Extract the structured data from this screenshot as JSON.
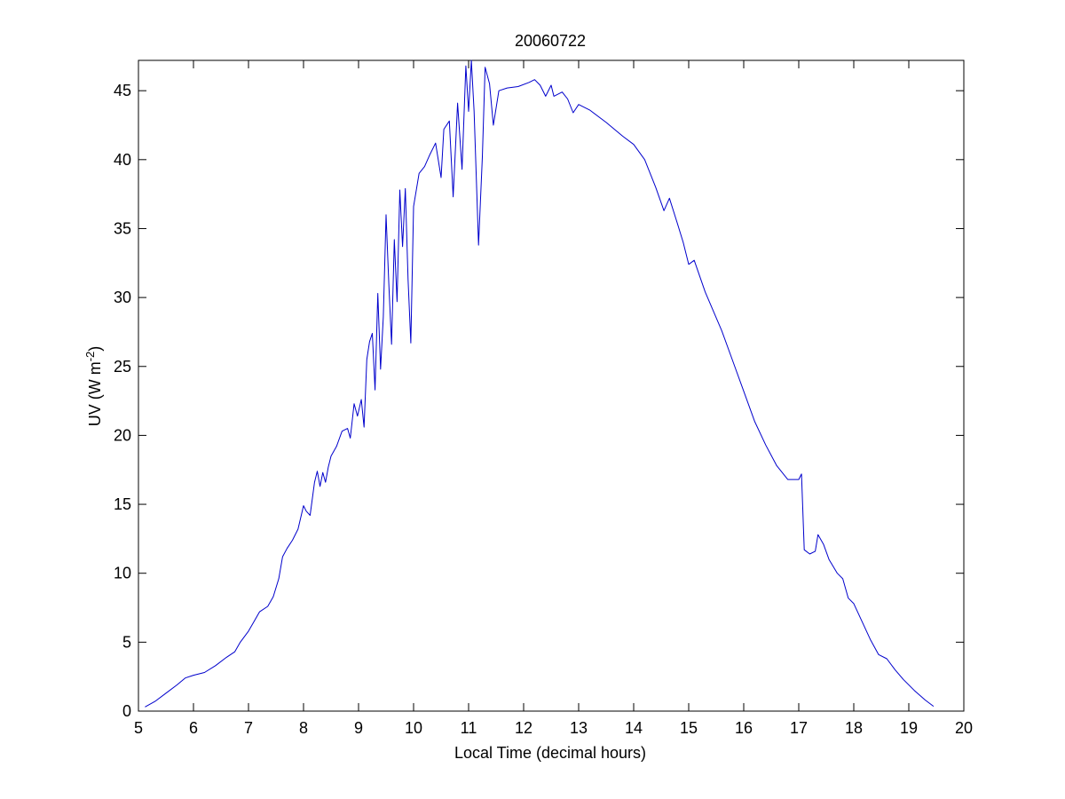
{
  "chart_data": {
    "type": "line",
    "title": "20060722",
    "xlabel": "Local Time (decimal hours)",
    "ylabel": "UV (W m",
    "ylabel_sup": "-2",
    "ylabel_close": ")",
    "xlim": [
      5,
      20
    ],
    "ylim": [
      0,
      47.2
    ],
    "xticks": [
      5,
      6,
      7,
      8,
      9,
      10,
      11,
      12,
      13,
      14,
      15,
      16,
      17,
      18,
      19,
      20
    ],
    "yticks": [
      0,
      5,
      10,
      15,
      20,
      25,
      30,
      35,
      40,
      45
    ],
    "grid": false,
    "series": [
      {
        "color": "#0000cc",
        "points": [
          [
            5.12,
            0.3
          ],
          [
            5.3,
            0.7
          ],
          [
            5.5,
            1.3
          ],
          [
            5.7,
            1.9
          ],
          [
            5.85,
            2.4
          ],
          [
            6.0,
            2.6
          ],
          [
            6.2,
            2.8
          ],
          [
            6.4,
            3.3
          ],
          [
            6.6,
            3.9
          ],
          [
            6.75,
            4.3
          ],
          [
            6.85,
            5.0
          ],
          [
            7.0,
            5.8
          ],
          [
            7.1,
            6.5
          ],
          [
            7.2,
            7.2
          ],
          [
            7.35,
            7.6
          ],
          [
            7.45,
            8.3
          ],
          [
            7.55,
            9.6
          ],
          [
            7.62,
            11.2
          ],
          [
            7.7,
            11.8
          ],
          [
            7.8,
            12.4
          ],
          [
            7.9,
            13.2
          ],
          [
            8.0,
            14.9
          ],
          [
            8.05,
            14.5
          ],
          [
            8.12,
            14.2
          ],
          [
            8.2,
            16.6
          ],
          [
            8.25,
            17.4
          ],
          [
            8.3,
            16.3
          ],
          [
            8.35,
            17.3
          ],
          [
            8.4,
            16.6
          ],
          [
            8.45,
            17.7
          ],
          [
            8.5,
            18.5
          ],
          [
            8.6,
            19.2
          ],
          [
            8.7,
            20.3
          ],
          [
            8.8,
            20.5
          ],
          [
            8.85,
            19.8
          ],
          [
            8.92,
            22.3
          ],
          [
            8.98,
            21.4
          ],
          [
            9.05,
            22.6
          ],
          [
            9.1,
            20.6
          ],
          [
            9.15,
            25.5
          ],
          [
            9.2,
            26.8
          ],
          [
            9.25,
            27.4
          ],
          [
            9.3,
            23.3
          ],
          [
            9.35,
            30.3
          ],
          [
            9.4,
            24.8
          ],
          [
            9.45,
            28.6
          ],
          [
            9.5,
            36.0
          ],
          [
            9.55,
            31.0
          ],
          [
            9.6,
            26.6
          ],
          [
            9.65,
            34.2
          ],
          [
            9.7,
            29.7
          ],
          [
            9.75,
            37.8
          ],
          [
            9.8,
            33.7
          ],
          [
            9.85,
            37.9
          ],
          [
            9.9,
            31.3
          ],
          [
            9.95,
            26.7
          ],
          [
            10.0,
            36.6
          ],
          [
            10.1,
            39.0
          ],
          [
            10.2,
            39.5
          ],
          [
            10.3,
            40.4
          ],
          [
            10.4,
            41.2
          ],
          [
            10.5,
            38.7
          ],
          [
            10.55,
            42.2
          ],
          [
            10.65,
            42.8
          ],
          [
            10.72,
            37.3
          ],
          [
            10.8,
            44.1
          ],
          [
            10.88,
            39.3
          ],
          [
            10.95,
            46.8
          ],
          [
            11.0,
            43.5
          ],
          [
            11.05,
            47.2
          ],
          [
            11.1,
            43.5
          ],
          [
            11.18,
            33.8
          ],
          [
            11.25,
            40.2
          ],
          [
            11.3,
            46.7
          ],
          [
            11.38,
            45.5
          ],
          [
            11.45,
            42.5
          ],
          [
            11.55,
            45.0
          ],
          [
            11.7,
            45.2
          ],
          [
            11.9,
            45.3
          ],
          [
            12.1,
            45.6
          ],
          [
            12.2,
            45.8
          ],
          [
            12.3,
            45.4
          ],
          [
            12.4,
            44.6
          ],
          [
            12.5,
            45.4
          ],
          [
            12.55,
            44.6
          ],
          [
            12.7,
            44.9
          ],
          [
            12.8,
            44.4
          ],
          [
            12.9,
            43.4
          ],
          [
            13.0,
            44.0
          ],
          [
            13.2,
            43.6
          ],
          [
            13.5,
            42.7
          ],
          [
            13.8,
            41.7
          ],
          [
            14.0,
            41.1
          ],
          [
            14.2,
            40.0
          ],
          [
            14.4,
            38.0
          ],
          [
            14.55,
            36.3
          ],
          [
            14.65,
            37.2
          ],
          [
            14.8,
            35.3
          ],
          [
            14.9,
            34.0
          ],
          [
            15.0,
            32.4
          ],
          [
            15.1,
            32.7
          ],
          [
            15.3,
            30.4
          ],
          [
            15.6,
            27.6
          ],
          [
            15.8,
            25.4
          ],
          [
            16.0,
            23.2
          ],
          [
            16.2,
            21.0
          ],
          [
            16.4,
            19.3
          ],
          [
            16.6,
            17.8
          ],
          [
            16.8,
            16.8
          ],
          [
            17.0,
            16.8
          ],
          [
            17.05,
            17.2
          ],
          [
            17.1,
            11.7
          ],
          [
            17.2,
            11.4
          ],
          [
            17.3,
            11.6
          ],
          [
            17.35,
            12.8
          ],
          [
            17.45,
            12.1
          ],
          [
            17.55,
            11.0
          ],
          [
            17.7,
            10.0
          ],
          [
            17.8,
            9.6
          ],
          [
            17.9,
            8.2
          ],
          [
            18.0,
            7.8
          ],
          [
            18.15,
            6.5
          ],
          [
            18.3,
            5.2
          ],
          [
            18.45,
            4.1
          ],
          [
            18.6,
            3.8
          ],
          [
            18.75,
            3.0
          ],
          [
            18.9,
            2.3
          ],
          [
            19.1,
            1.5
          ],
          [
            19.3,
            0.8
          ],
          [
            19.45,
            0.35
          ]
        ]
      }
    ]
  }
}
